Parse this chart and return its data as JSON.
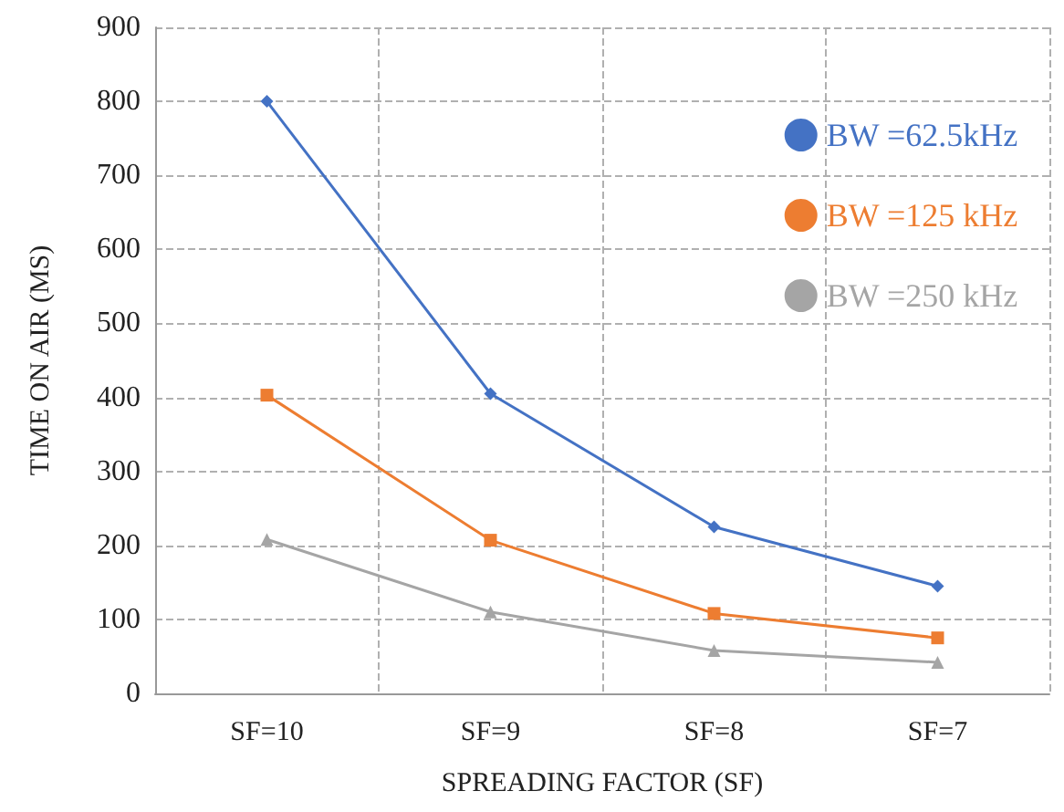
{
  "chart_data": {
    "type": "line",
    "xlabel": "SPREADING FACTOR (SF)",
    "ylabel": "TIME ON AIR (MS)",
    "categories": [
      "SF=10",
      "SF=9",
      "SF=8",
      "SF=7"
    ],
    "series": [
      {
        "name": "BW =62.5kHz",
        "color": "#4472c4",
        "marker": "diamond",
        "values": [
          800,
          405,
          225,
          145
        ]
      },
      {
        "name": "BW =125 kHz",
        "color": "#ed7d31",
        "marker": "square",
        "values": [
          403,
          207,
          108,
          75
        ]
      },
      {
        "name": "BW =250 kHz",
        "color": "#a5a5a5",
        "marker": "triangle",
        "values": [
          208,
          110,
          58,
          42
        ]
      }
    ],
    "ylim": [
      0,
      900
    ],
    "yticks": [
      0,
      100,
      200,
      300,
      400,
      500,
      600,
      700,
      800,
      900
    ],
    "grid": true,
    "legend": "top right"
  }
}
